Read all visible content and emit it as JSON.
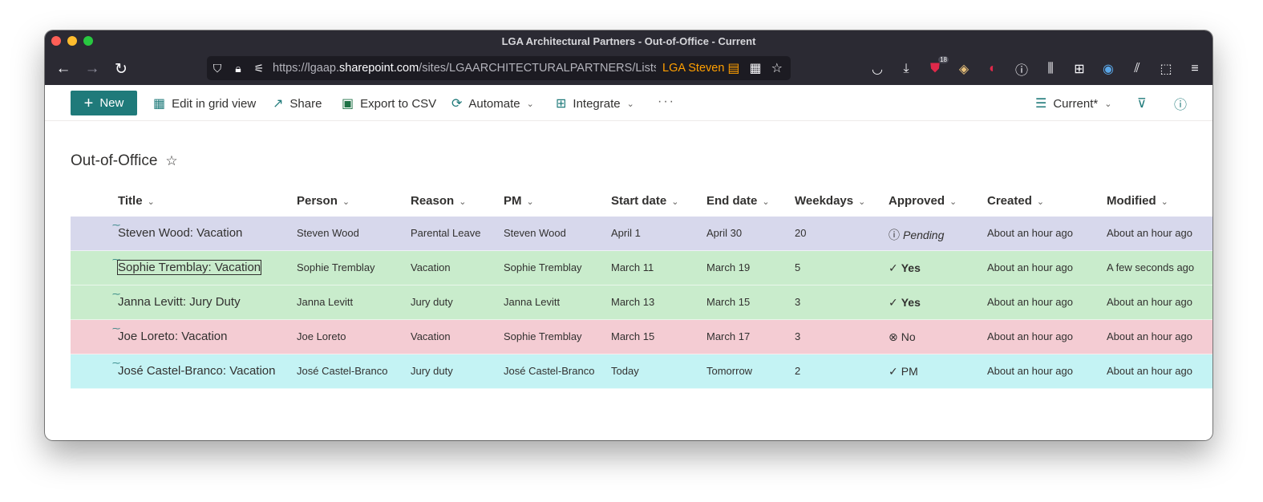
{
  "window": {
    "title": "LGA Architectural Partners - Out-of-Office - Current"
  },
  "browser": {
    "url_prefix": "https://lgaap.",
    "url_host": "sharepoint.com",
    "url_suffix": "/sites/LGAARCHITECTURALPARTNERS/Lists/O",
    "container_label": "LGA Steven",
    "extension_badge": "18"
  },
  "colors": {
    "accent": "#1f7a7a",
    "row_pending": "#d7d8ec",
    "row_yes": "#c9eccc",
    "row_no": "#f4ccd3",
    "row_pm": "#c4f3f4"
  },
  "commandbar": {
    "new_label": "New",
    "edit_grid_label": "Edit in grid view",
    "share_label": "Share",
    "export_label": "Export to CSV",
    "automate_label": "Automate",
    "integrate_label": "Integrate",
    "more_label": "···",
    "view_label": "Current*"
  },
  "list": {
    "title": "Out-of-Office",
    "columns": {
      "title": "Title",
      "person": "Person",
      "reason": "Reason",
      "pm": "PM",
      "start": "Start date",
      "end": "End date",
      "weekdays": "Weekdays",
      "approved": "Approved",
      "created": "Created",
      "modified": "Modified"
    },
    "rows": [
      {
        "title": "Steven Wood: Vacation",
        "person": "Steven Wood",
        "reason": "Parental Leave",
        "pm": "Steven Wood",
        "start": "April 1",
        "end": "April 30",
        "weekdays": "20",
        "approved_icon": "ⓘ",
        "approved": "Pending",
        "created": "About an hour ago",
        "modified": "About an hour ago"
      },
      {
        "title": "Sophie Tremblay: Vacation",
        "person": "Sophie Tremblay",
        "reason": "Vacation",
        "pm": "Sophie Tremblay",
        "start": "March 11",
        "end": "March 19",
        "weekdays": "5",
        "approved_icon": "✓",
        "approved": "Yes",
        "created": "About an hour ago",
        "modified": "A few seconds ago"
      },
      {
        "title": "Janna Levitt: Jury Duty",
        "person": "Janna Levitt",
        "reason": "Jury duty",
        "pm": "Janna Levitt",
        "start": "March 13",
        "end": "March 15",
        "weekdays": "3",
        "approved_icon": "✓",
        "approved": "Yes",
        "created": "About an hour ago",
        "modified": "About an hour ago"
      },
      {
        "title": "Joe Loreto: Vacation",
        "person": "Joe Loreto",
        "reason": "Vacation",
        "pm": "Sophie Tremblay",
        "start": "March 15",
        "end": "March 17",
        "weekdays": "3",
        "approved_icon": "⊗",
        "approved": "No",
        "created": "About an hour ago",
        "modified": "About an hour ago"
      },
      {
        "title": "José Castel-Branco: Vacation",
        "person": "José Castel-Branco",
        "reason": "Jury duty",
        "pm": "José Castel-Branco",
        "start": "Today",
        "end": "Tomorrow",
        "weekdays": "2",
        "approved_icon": "✓",
        "approved": "PM",
        "created": "About an hour ago",
        "modified": "About an hour ago"
      }
    ]
  }
}
